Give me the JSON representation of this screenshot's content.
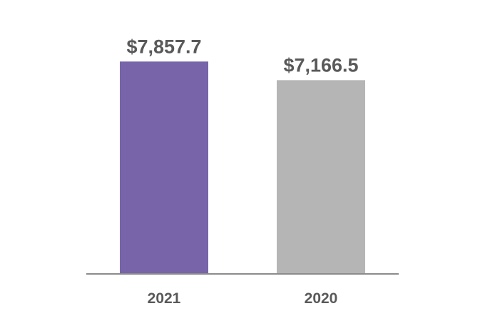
{
  "chart_data": {
    "type": "bar",
    "title": "",
    "xlabel": "",
    "ylabel": "",
    "categories": [
      "2021",
      "2020"
    ],
    "values": [
      7857.7,
      7166.5
    ],
    "value_labels": [
      "$7,857.7",
      "$7,166.5"
    ],
    "ylim": [
      0,
      8500
    ],
    "grid": false,
    "legend": "none"
  },
  "colors": {
    "bars": [
      "#7764a9",
      "#b5b5b5"
    ],
    "axis": "#8c8c8c",
    "text": "#595959"
  }
}
